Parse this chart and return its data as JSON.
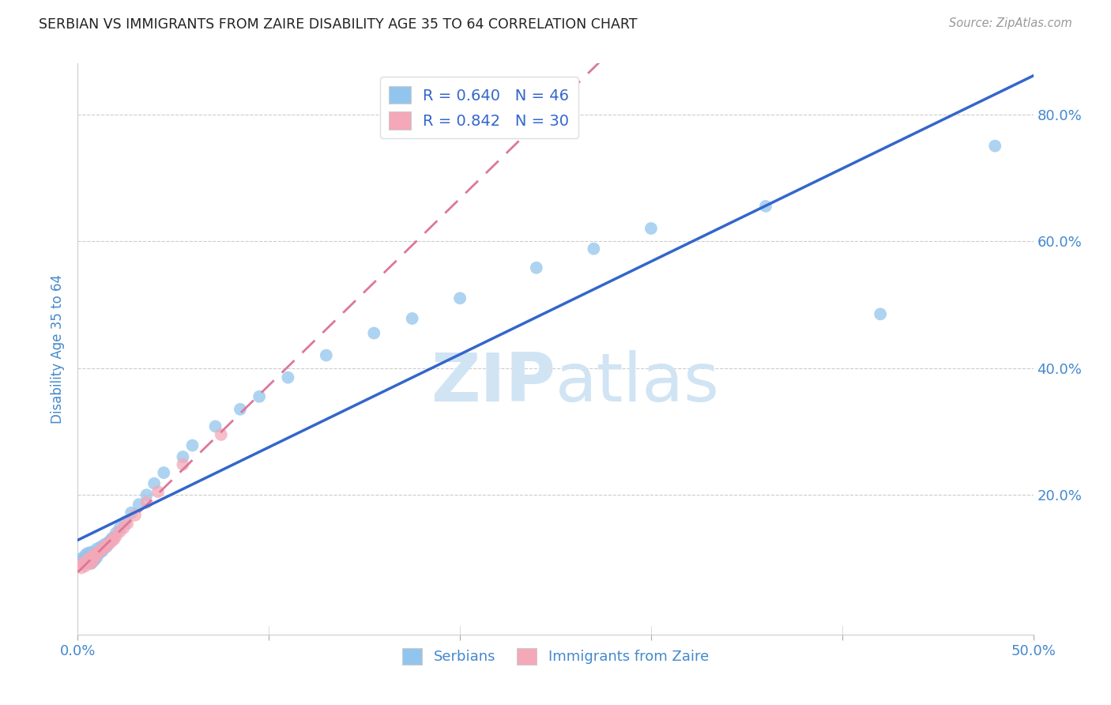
{
  "title": "SERBIAN VS IMMIGRANTS FROM ZAIRE DISABILITY AGE 35 TO 64 CORRELATION CHART",
  "source": "Source: ZipAtlas.com",
  "ylabel": "Disability Age 35 to 64",
  "legend_label_blue": "Serbians",
  "legend_label_pink": "Immigrants from Zaire",
  "R_blue": 0.64,
  "N_blue": 46,
  "R_pink": 0.842,
  "N_pink": 30,
  "blue_color": "#92C5ED",
  "pink_color": "#F4A8B8",
  "line_blue": "#3366CC",
  "line_pink": "#DD7799",
  "bg_color": "#FFFFFF",
  "grid_color": "#CCCCCC",
  "title_color": "#222222",
  "axis_label_color": "#4488CC",
  "watermark_color": "#D0E4F4",
  "xlim": [
    0.0,
    0.5
  ],
  "ylim": [
    -0.02,
    0.88
  ],
  "x_ticks": [
    0.0,
    0.1,
    0.2,
    0.3,
    0.4,
    0.5
  ],
  "x_tick_labels": [
    "0.0%",
    "",
    "",
    "",
    "",
    "50.0%"
  ],
  "y_ticks": [
    0.2,
    0.4,
    0.6,
    0.8
  ],
  "y_tick_labels": [
    "20.0%",
    "40.0%",
    "60.0%",
    "80.0%"
  ],
  "blue_scatter_x": [
    0.002,
    0.003,
    0.004,
    0.005,
    0.005,
    0.006,
    0.007,
    0.007,
    0.008,
    0.008,
    0.009,
    0.01,
    0.01,
    0.011,
    0.012,
    0.012,
    0.013,
    0.014,
    0.015,
    0.016,
    0.017,
    0.018,
    0.02,
    0.022,
    0.025,
    0.028,
    0.032,
    0.036,
    0.04,
    0.045,
    0.055,
    0.06,
    0.072,
    0.085,
    0.095,
    0.11,
    0.13,
    0.155,
    0.175,
    0.2,
    0.24,
    0.27,
    0.3,
    0.36,
    0.42,
    0.48
  ],
  "blue_scatter_y": [
    0.1,
    0.098,
    0.105,
    0.095,
    0.108,
    0.1,
    0.092,
    0.11,
    0.095,
    0.105,
    0.098,
    0.102,
    0.115,
    0.108,
    0.11,
    0.118,
    0.112,
    0.122,
    0.118,
    0.125,
    0.128,
    0.132,
    0.14,
    0.148,
    0.158,
    0.172,
    0.185,
    0.2,
    0.218,
    0.235,
    0.26,
    0.278,
    0.308,
    0.335,
    0.355,
    0.385,
    0.42,
    0.455,
    0.478,
    0.51,
    0.558,
    0.588,
    0.62,
    0.655,
    0.485,
    0.75
  ],
  "pink_scatter_x": [
    0.001,
    0.002,
    0.003,
    0.004,
    0.005,
    0.005,
    0.006,
    0.007,
    0.008,
    0.008,
    0.009,
    0.01,
    0.011,
    0.012,
    0.013,
    0.014,
    0.015,
    0.016,
    0.017,
    0.018,
    0.019,
    0.02,
    0.022,
    0.024,
    0.026,
    0.03,
    0.036,
    0.042,
    0.055,
    0.075
  ],
  "pink_scatter_y": [
    0.09,
    0.085,
    0.092,
    0.088,
    0.095,
    0.098,
    0.1,
    0.092,
    0.098,
    0.105,
    0.102,
    0.108,
    0.11,
    0.112,
    0.115,
    0.118,
    0.12,
    0.122,
    0.125,
    0.128,
    0.13,
    0.135,
    0.142,
    0.148,
    0.155,
    0.168,
    0.188,
    0.205,
    0.248,
    0.295
  ]
}
